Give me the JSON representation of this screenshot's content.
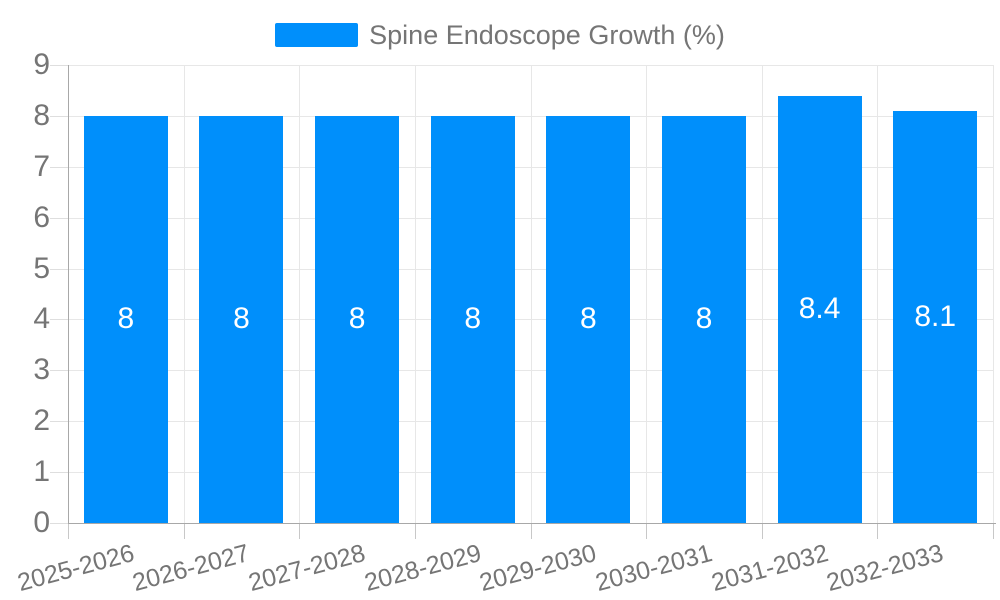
{
  "chart_data": {
    "type": "bar",
    "categories": [
      "2025-2026",
      "2026-2027",
      "2027-2028",
      "2028-2029",
      "2029-2030",
      "2030-2031",
      "2031-2032",
      "2032-2033"
    ],
    "series": [
      {
        "name": "Spine Endoscope Growth (%)",
        "values": [
          8,
          8,
          8,
          8,
          8,
          8,
          8.4,
          8.1
        ]
      }
    ],
    "data_labels": [
      "8",
      "8",
      "8",
      "8",
      "8",
      "8",
      "8.4",
      "8.1"
    ],
    "ylim": [
      0,
      9
    ],
    "ytick_values": [
      0,
      1,
      2,
      3,
      4,
      5,
      6,
      7,
      8,
      9
    ],
    "grid": "on",
    "legend_position": "top",
    "xlabel": "",
    "ylabel": "",
    "colors": {
      "bar": "#008FFB",
      "axis_text": "#757575",
      "data_label": "#FFFFFF",
      "gridline": "#E7E7E7",
      "y_tick": "#DEDEDE",
      "x_tick": "#C8C8C8",
      "axis_line": "#A8A8A8"
    }
  }
}
